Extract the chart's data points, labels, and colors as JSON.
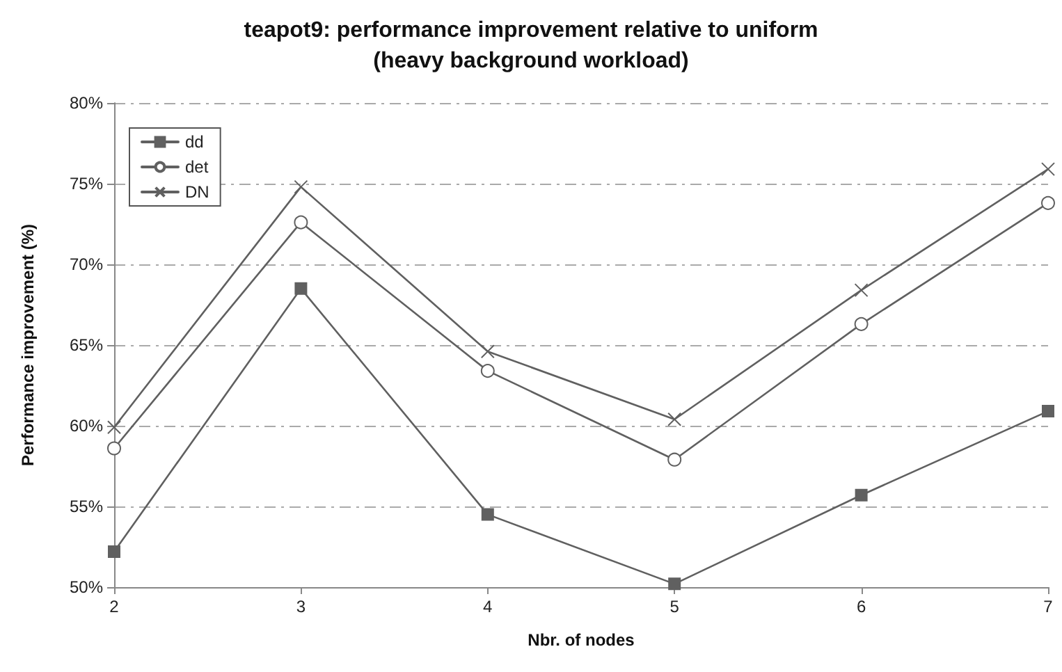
{
  "chart_data": {
    "type": "line",
    "title": "teapot9: performance improvement relative to uniform\n(heavy background workload)",
    "xlabel": "Nbr. of nodes",
    "ylabel": "Performance improvement (%)",
    "categories": [
      "2",
      "3",
      "4",
      "5",
      "6",
      "7"
    ],
    "series": [
      {
        "name": "dd",
        "color": "#606060",
        "marker": "square",
        "values": [
          52.2,
          68.5,
          54.5,
          50.2,
          55.7,
          60.9
        ]
      },
      {
        "name": "det",
        "color": "#606060",
        "marker": "circle",
        "values": [
          58.6,
          72.6,
          63.4,
          57.9,
          66.3,
          73.8
        ]
      },
      {
        "name": "DN",
        "color": "#606060",
        "marker": "cross",
        "values": [
          59.9,
          74.8,
          64.6,
          60.4,
          68.4,
          75.9
        ]
      }
    ],
    "ylim": [
      50,
      80
    ],
    "yticks": [
      {
        "value": 50,
        "label": "50%"
      },
      {
        "value": 55,
        "label": "55%"
      },
      {
        "value": 60,
        "label": "60%"
      },
      {
        "value": 65,
        "label": "65%"
      },
      {
        "value": 70,
        "label": "70%"
      },
      {
        "value": 75,
        "label": "75%"
      },
      {
        "value": 80,
        "label": "80%"
      }
    ],
    "grid": "y",
    "legend": "top left",
    "line_style": "solid"
  }
}
